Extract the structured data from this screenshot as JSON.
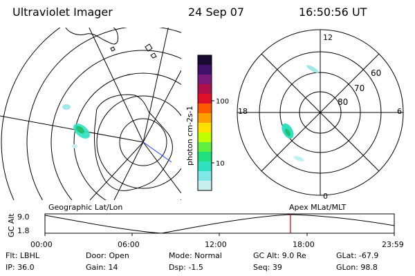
{
  "header": {
    "instrument": "Ultraviolet Imager",
    "date": "24 Sep 07",
    "time": "16:50:56 UT"
  },
  "colorbar": {
    "label": "photon cm-2s-1",
    "ticks": [
      "100",
      "10"
    ],
    "colors": [
      "#1a0a33",
      "#40106a",
      "#7a1a7a",
      "#b0104a",
      "#e0102a",
      "#ff5a00",
      "#ffa000",
      "#ffe000",
      "#c0ff00",
      "#60ee40",
      "#20e080",
      "#30e0c0",
      "#80e8e8",
      "#c8f0f0"
    ]
  },
  "polar_plot": {
    "hour_labels": {
      "top": "12",
      "left": "18",
      "right": "6",
      "bottom": "0"
    },
    "lat_labels": [
      "60",
      "70",
      "80"
    ]
  },
  "alt_panel": {
    "left_caption": "Geographic Lat/Lon",
    "right_caption": "Apex MLat/MLT",
    "y_label": "GC Alt",
    "y_ticks": [
      "9.0",
      "1.8"
    ],
    "x_ticks": [
      "00:00",
      "06:00",
      "12:00",
      "18:00",
      "23:59"
    ],
    "current_time_fraction": 0.7028,
    "marker_color": "#e00000"
  },
  "info": {
    "filter": "Flt: LBHL",
    "ip": "IP: 36.0",
    "door": "Door: Open",
    "gain": "Gain: 14",
    "mode": "Mode: Normal",
    "dsp": "Dsp:   -1.5",
    "gc_alt": "GC Alt: 9.0 Re",
    "seq": "Seq: 39",
    "glat": "GLat: -67.9",
    "glon": "GLon:  98.8"
  }
}
